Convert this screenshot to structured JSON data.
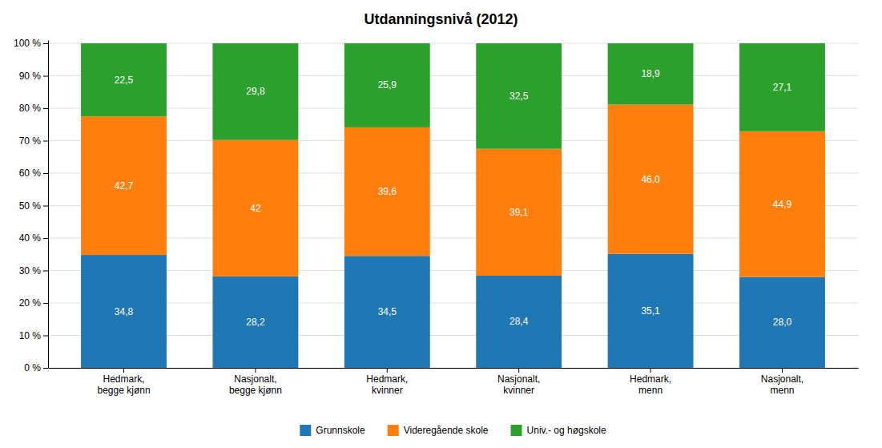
{
  "chart_data": {
    "type": "bar",
    "title": "Utdanningsnivå (2012)",
    "categories": [
      "Hedmark,\nbegge kjønn",
      "Nasjonalt,\nbegge kjønn",
      "Hedmark,\nkvinner",
      "Nasjonalt,\nkvinner",
      "Hedmark,\nmenn",
      "Nasjonalt,\nmenn"
    ],
    "series": [
      {
        "name": "Grunnskole",
        "values": [
          34.8,
          28.2,
          34.5,
          28.4,
          35.1,
          28.0
        ],
        "value_labels": [
          "34,8",
          "28,2",
          "34,5",
          "28,4",
          "35,1",
          "28,0"
        ]
      },
      {
        "name": "Videregående skole",
        "values": [
          42.7,
          42.0,
          39.6,
          39.1,
          46.0,
          44.9
        ],
        "value_labels": [
          "42,7",
          "42",
          "39,6",
          "39,1",
          "46,0",
          "44,9"
        ]
      },
      {
        "name": "Univ.- og høgskole",
        "values": [
          22.5,
          29.8,
          25.9,
          32.5,
          18.9,
          27.1
        ],
        "value_labels": [
          "22,5",
          "29,8",
          "25,9",
          "32,5",
          "18,9",
          "27,1"
        ]
      }
    ],
    "stacked": true,
    "data_labels": true,
    "ylim": [
      0,
      101
    ],
    "yticks": [
      {
        "value": 0,
        "label": "0 %"
      },
      {
        "value": 10,
        "label": "10 %"
      },
      {
        "value": 20,
        "label": "20 %"
      },
      {
        "value": 30,
        "label": "30 %"
      },
      {
        "value": 40,
        "label": "40 %"
      },
      {
        "value": 50,
        "label": "50 %"
      },
      {
        "value": 60,
        "label": "60 %"
      },
      {
        "value": 70,
        "label": "70 %"
      },
      {
        "value": 80,
        "label": "80 %"
      },
      {
        "value": 90,
        "label": "90 %"
      },
      {
        "value": 100,
        "label": "100 %"
      }
    ],
    "grid": true,
    "legend": "bottom"
  }
}
